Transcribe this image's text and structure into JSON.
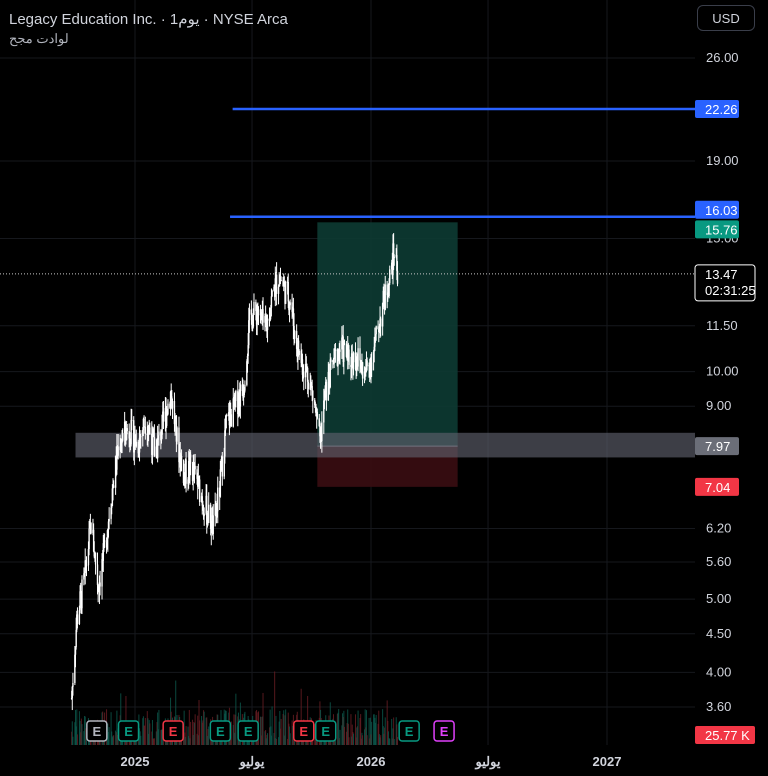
{
  "header": {
    "title": "Legacy Education Inc. · 1يوم · NYSE Arca",
    "subtitle": "لوادت مجح"
  },
  "currency_button": "USD",
  "colors": {
    "background": "#000000",
    "up_candle": "#ffffff",
    "blue_line": "#2962ff",
    "green_label": "#089981",
    "red_label": "#f23645",
    "gray_zone": "#5d606b",
    "target_zone": "#0d3b33",
    "stop_zone": "#3a0d12"
  },
  "chart_data": {
    "type": "candlestick",
    "y_scale": "log",
    "ylim": [
      3.4,
      29.0
    ],
    "y_ticks": [
      "26.00",
      "19.00",
      "15.00",
      "11.50",
      "10.00",
      "9.00",
      "6.20",
      "5.60",
      "5.00",
      "4.50",
      "4.00",
      "3.60"
    ],
    "x_ticks": [
      "2025",
      "يوليو",
      "2026",
      "يوليو",
      "2027"
    ],
    "x_tick_dates": [
      "2025-01-01",
      "2025-07-01",
      "2026-01-01",
      "2026-07-01",
      "2027-01-01"
    ],
    "last_price": {
      "value": "13.47",
      "countdown": "02:31:25"
    },
    "price_labels": [
      {
        "value": "22.26",
        "kind": "blue"
      },
      {
        "value": "16.03",
        "kind": "blue"
      },
      {
        "value": "15.76",
        "kind": "green"
      },
      {
        "value": "7.97",
        "kind": "gray"
      },
      {
        "value": "7.04",
        "kind": "red"
      }
    ],
    "horizontal_lines": [
      {
        "price": 22.26,
        "start_date": "2025-06-01"
      },
      {
        "price": 16.03,
        "start_date": "2025-05-28"
      }
    ],
    "support_zone": {
      "low": 7.7,
      "high": 8.3,
      "start_date": "2024-10-01"
    },
    "position": {
      "start_date": "2025-10-10",
      "end_date": "2026-05-15",
      "entry": 7.97,
      "target": 15.76,
      "stop": 7.04
    },
    "volume_label": "25.77 K",
    "event_markers": [
      {
        "letter": "E",
        "kind": "gray",
        "date": "2024-11-03"
      },
      {
        "letter": "E",
        "kind": "green",
        "date": "2024-12-22"
      },
      {
        "letter": "E",
        "kind": "red",
        "date": "2025-03-01"
      },
      {
        "letter": "E",
        "kind": "green",
        "date": "2025-05-13"
      },
      {
        "letter": "E",
        "kind": "green",
        "date": "2025-06-25"
      },
      {
        "letter": "E",
        "kind": "red",
        "date": "2025-09-19"
      },
      {
        "letter": "E",
        "kind": "green",
        "date": "2025-10-23"
      },
      {
        "letter": "E",
        "kind": "green",
        "date": "2026-03-01"
      },
      {
        "letter": "E",
        "kind": "magenta",
        "date": "2026-04-24"
      }
    ],
    "price_path": [
      [
        "2024-09-25",
        3.7
      ],
      [
        "2024-10-03",
        4.7
      ],
      [
        "2024-10-15",
        5.3
      ],
      [
        "2024-10-25",
        6.3
      ],
      [
        "2024-11-05",
        5.2
      ],
      [
        "2024-11-15",
        5.8
      ],
      [
        "2024-11-25",
        6.8
      ],
      [
        "2024-12-08",
        8.1
      ],
      [
        "2024-12-22",
        8.4
      ],
      [
        "2025-01-05",
        8.0
      ],
      [
        "2025-01-18",
        8.7
      ],
      [
        "2025-02-01",
        7.8
      ],
      [
        "2025-02-15",
        8.6
      ],
      [
        "2025-02-25",
        9.4
      ],
      [
        "2025-03-08",
        8.0
      ],
      [
        "2025-03-18",
        7.3
      ],
      [
        "2025-03-28",
        7.5
      ],
      [
        "2025-04-08",
        7.1
      ],
      [
        "2025-04-20",
        6.6
      ],
      [
        "2025-05-02",
        6.2
      ],
      [
        "2025-05-12",
        7.0
      ],
      [
        "2025-05-22",
        8.5
      ],
      [
        "2025-06-05",
        9.0
      ],
      [
        "2025-06-18",
        9.6
      ],
      [
        "2025-06-28",
        11.8
      ],
      [
        "2025-07-10",
        12.0
      ],
      [
        "2025-07-22",
        11.3
      ],
      [
        "2025-08-03",
        12.8
      ],
      [
        "2025-08-12",
        13.4
      ],
      [
        "2025-08-22",
        12.8
      ],
      [
        "2025-08-30",
        12.4
      ],
      [
        "2025-09-06",
        11.0
      ],
      [
        "2025-09-16",
        10.3
      ],
      [
        "2025-09-26",
        9.9
      ],
      [
        "2025-10-06",
        9.0
      ],
      [
        "2025-10-14",
        8.0
      ],
      [
        "2025-10-22",
        9.3
      ],
      [
        "2025-11-02",
        10.2
      ],
      [
        "2025-11-15",
        10.8
      ],
      [
        "2025-11-28",
        10.4
      ],
      [
        "2025-12-10",
        10.5
      ],
      [
        "2025-12-22",
        9.9
      ],
      [
        "2026-01-05",
        10.6
      ],
      [
        "2026-01-18",
        12.1
      ],
      [
        "2026-01-30",
        13.3
      ],
      [
        "2026-02-06",
        14.5
      ],
      [
        "2026-02-11",
        13.5
      ]
    ]
  }
}
